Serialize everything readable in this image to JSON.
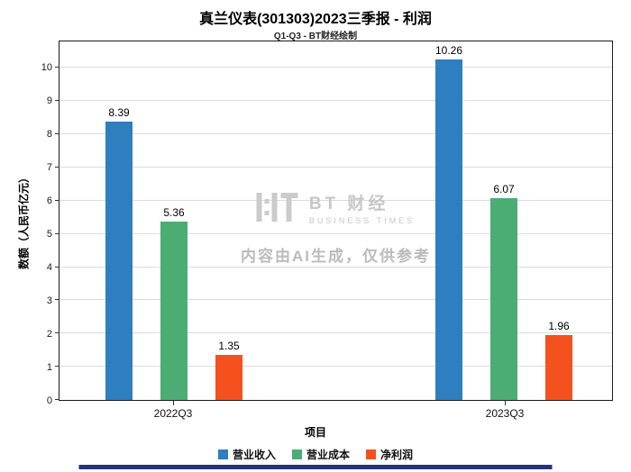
{
  "title": "真兰仪表(301303)2023三季报 - 利润",
  "subtitle": "Q1-Q3 - BT财经绘制",
  "chart_data": {
    "type": "bar",
    "title": "真兰仪表(301303)2023三季报 - 利润",
    "subtitle": "Q1-Q3 - BT财经绘制",
    "categories": [
      "2022Q3",
      "2023Q3"
    ],
    "series": [
      {
        "name": "营业收入",
        "color": "#2d7fc0",
        "values": [
          8.39,
          10.26
        ]
      },
      {
        "name": "营业成本",
        "color": "#4bad73",
        "values": [
          5.36,
          6.07
        ]
      },
      {
        "name": "净利润",
        "color": "#f4511e",
        "values": [
          1.35,
          1.96
        ]
      }
    ],
    "xlabel": "项目",
    "ylabel": "数额（人民币亿元）",
    "ylim": [
      0,
      10.8
    ],
    "yticks": [
      0,
      1,
      2,
      3,
      4,
      5,
      6,
      7,
      8,
      9,
      10
    ],
    "grid": true,
    "legend_position": "bottom"
  },
  "watermark": {
    "logo_name": "BT 财经",
    "logo_sub": "BUSINESS TIMES",
    "disclaimer": "内容由AI生成，仅供参考"
  },
  "accent_bar_color": "#25337a"
}
